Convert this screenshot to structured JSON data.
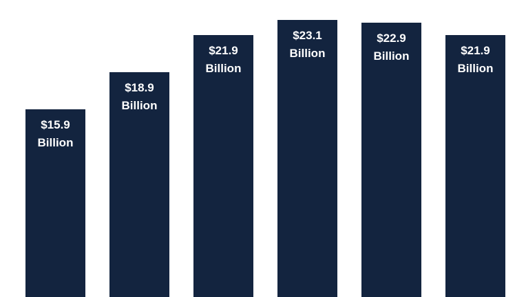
{
  "chart_data": {
    "type": "bar",
    "categories": [
      null,
      null,
      null,
      null,
      null,
      null
    ],
    "values": [
      15.9,
      18.9,
      21.9,
      23.1,
      22.9,
      21.9
    ],
    "value_labels": [
      "$15.9 Billion",
      "$18.9 Billion",
      "$21.9 Billion",
      "$23.1 Billion",
      "$22.9 Billion",
      "$21.9 Billion"
    ],
    "color": "#13243f"
  }
}
